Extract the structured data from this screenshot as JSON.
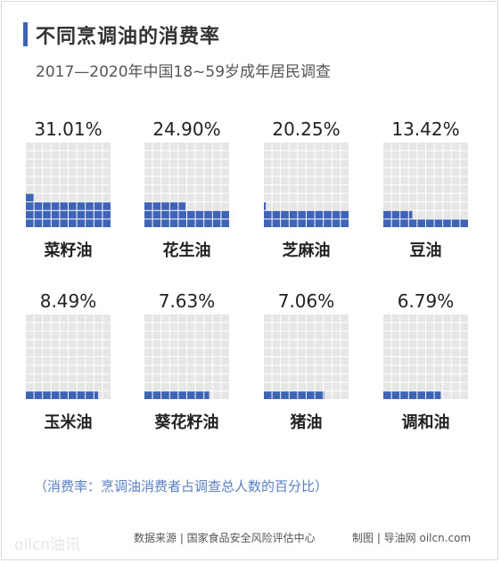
{
  "header": {
    "title": "不同烹调油的消费率",
    "subtitle": "2017—2020年中国18~59岁成年居民调查"
  },
  "colors": {
    "filled": "#3f63b5",
    "empty": "#e6e6e6",
    "accent": "#3f63b5"
  },
  "chart_data": {
    "type": "waffle",
    "unit": "%",
    "title": "不同烹调油的消费率",
    "subtitle": "2017—2020年中国18~59岁成年居民调查",
    "categories": [
      "菜籽油",
      "花生油",
      "芝麻油",
      "豆油",
      "玉米油",
      "葵花籽油",
      "猪油",
      "调和油"
    ],
    "values": [
      31.01,
      24.9,
      20.25,
      13.42,
      8.49,
      7.63,
      7.06,
      6.79
    ],
    "value_labels": [
      "31.01%",
      "24.90%",
      "20.25%",
      "13.42%",
      "8.49%",
      "7.63%",
      "7.06%",
      "6.79%"
    ],
    "grid": "10x10"
  },
  "footer": {
    "note": "（消费率：烹调油消费者占调查总人数的百分比）",
    "watermark": "oilcn油讯",
    "source": "数据来源 | 国家食品安全风险评估中心",
    "credit": "制图 | 导油网 oilcn.com"
  }
}
